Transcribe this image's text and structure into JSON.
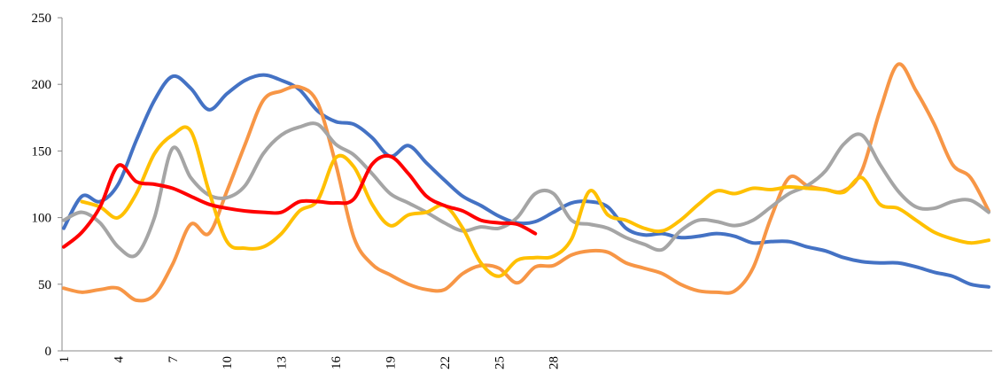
{
  "chart_data": {
    "type": "line",
    "categories": [
      "1",
      null,
      null,
      "4",
      null,
      null,
      "7",
      null,
      null,
      "10",
      null,
      null,
      "13",
      null,
      null,
      "16",
      null,
      null,
      "19",
      null,
      null,
      "22",
      null,
      null,
      "25",
      null,
      null,
      "28",
      null,
      null,
      null,
      null,
      null,
      null,
      null,
      null,
      null,
      null,
      null,
      null,
      null,
      null,
      null,
      null,
      null,
      null,
      null,
      null,
      null,
      null,
      null,
      null
    ],
    "ylim": [
      0,
      250
    ],
    "yticks": [
      0,
      50,
      100,
      150,
      200,
      250
    ],
    "series": [
      {
        "color": "#4472c4",
        "values": [
          92,
          116,
          112,
          125,
          158,
          188,
          206,
          197,
          181,
          193,
          203,
          207,
          203,
          196,
          180,
          172,
          170,
          160,
          146,
          154,
          141,
          128,
          116,
          109,
          101,
          96,
          97,
          104,
          111,
          112,
          108,
          92,
          87,
          88,
          85,
          86,
          88,
          86,
          81,
          82,
          82,
          78,
          75,
          70,
          67,
          66,
          66,
          63,
          59,
          56,
          50,
          48
        ]
      },
      {
        "color": "#f79646",
        "values": [
          47,
          44,
          46,
          47,
          38,
          42,
          65,
          95,
          88,
          120,
          155,
          188,
          195,
          198,
          186,
          140,
          85,
          65,
          57,
          50,
          46,
          46,
          58,
          64,
          62,
          51,
          63,
          64,
          72,
          75,
          74,
          66,
          62,
          58,
          50,
          45,
          44,
          45,
          62,
          100,
          130,
          124,
          121,
          120,
          135,
          180,
          215,
          195,
          170,
          140,
          130,
          105
        ]
      },
      {
        "color": "#a5a5a5",
        "values": [
          98,
          104,
          96,
          78,
          72,
          100,
          152,
          130,
          117,
          115,
          124,
          148,
          162,
          168,
          170,
          155,
          147,
          133,
          118,
          111,
          104,
          96,
          90,
          93,
          92,
          100,
          118,
          118,
          98,
          95,
          92,
          85,
          80,
          76,
          90,
          98,
          97,
          94,
          98,
          108,
          118,
          124,
          135,
          155,
          162,
          140,
          120,
          108,
          107,
          112,
          113,
          104
        ]
      },
      {
        "color": "#ffc000",
        "values": [
          null,
          112,
          108,
          100,
          118,
          148,
          162,
          165,
          120,
          82,
          77,
          78,
          88,
          105,
          113,
          145,
          138,
          110,
          94,
          102,
          104,
          109,
          92,
          66,
          56,
          68,
          70,
          71,
          84,
          120,
          102,
          98,
          92,
          90,
          98,
          110,
          120,
          118,
          122,
          121,
          123,
          122,
          121,
          119,
          130,
          110,
          107,
          98,
          89,
          84,
          81,
          83
        ]
      },
      {
        "color": "#ff0000",
        "values": [
          78,
          89,
          108,
          139,
          127,
          125,
          122,
          116,
          110,
          107,
          105,
          104,
          104,
          112,
          112,
          111,
          114,
          140,
          146,
          133,
          116,
          109,
          105,
          98,
          96,
          95,
          88,
          null,
          null,
          null,
          null,
          null,
          null,
          null,
          null,
          null,
          null,
          null,
          null,
          null,
          null,
          null,
          null,
          null,
          null,
          null,
          null,
          null,
          null,
          null,
          null,
          null
        ]
      }
    ]
  }
}
